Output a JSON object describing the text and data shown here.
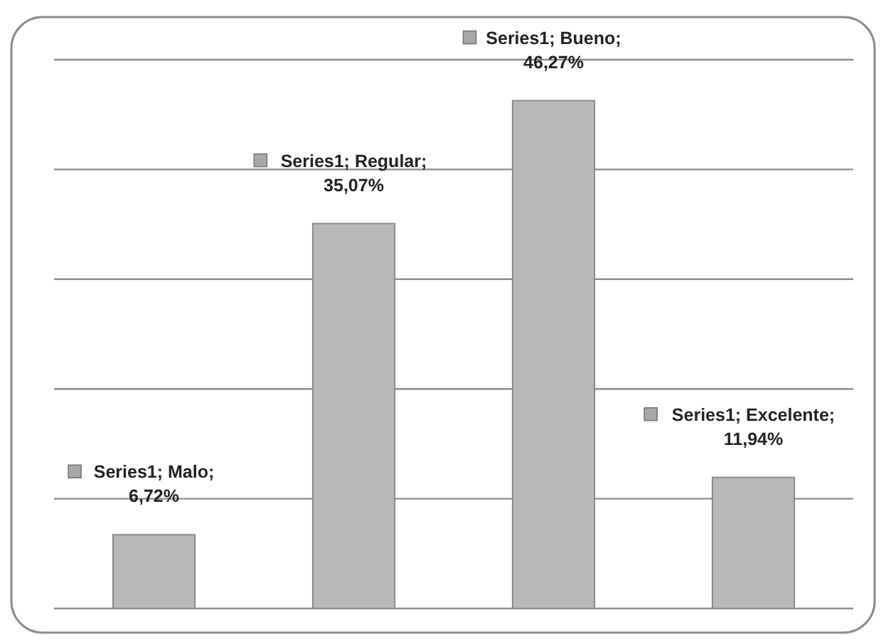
{
  "chart_data": {
    "type": "bar",
    "categories": [
      null,
      null,
      null,
      null
    ],
    "values": [
      6.72,
      35.07,
      46.27,
      11.94
    ],
    "color": "#b8b8b8",
    "value_labels": [
      "Series1; Malo; 6,72%",
      "Series1; Regular; 35,07%",
      "Series1; Bueno; 46,27%",
      "Series1; Excelente; 11,94%"
    ],
    "ylim": [
      0,
      50
    ],
    "yticks": [
      {
        "value": 0,
        "label": null
      },
      {
        "value": 10,
        "label": null
      },
      {
        "value": 20,
        "label": null
      },
      {
        "value": 30,
        "label": null
      },
      {
        "value": 40,
        "label": null
      },
      {
        "value": 50,
        "label": null
      }
    ],
    "grid": "y"
  }
}
